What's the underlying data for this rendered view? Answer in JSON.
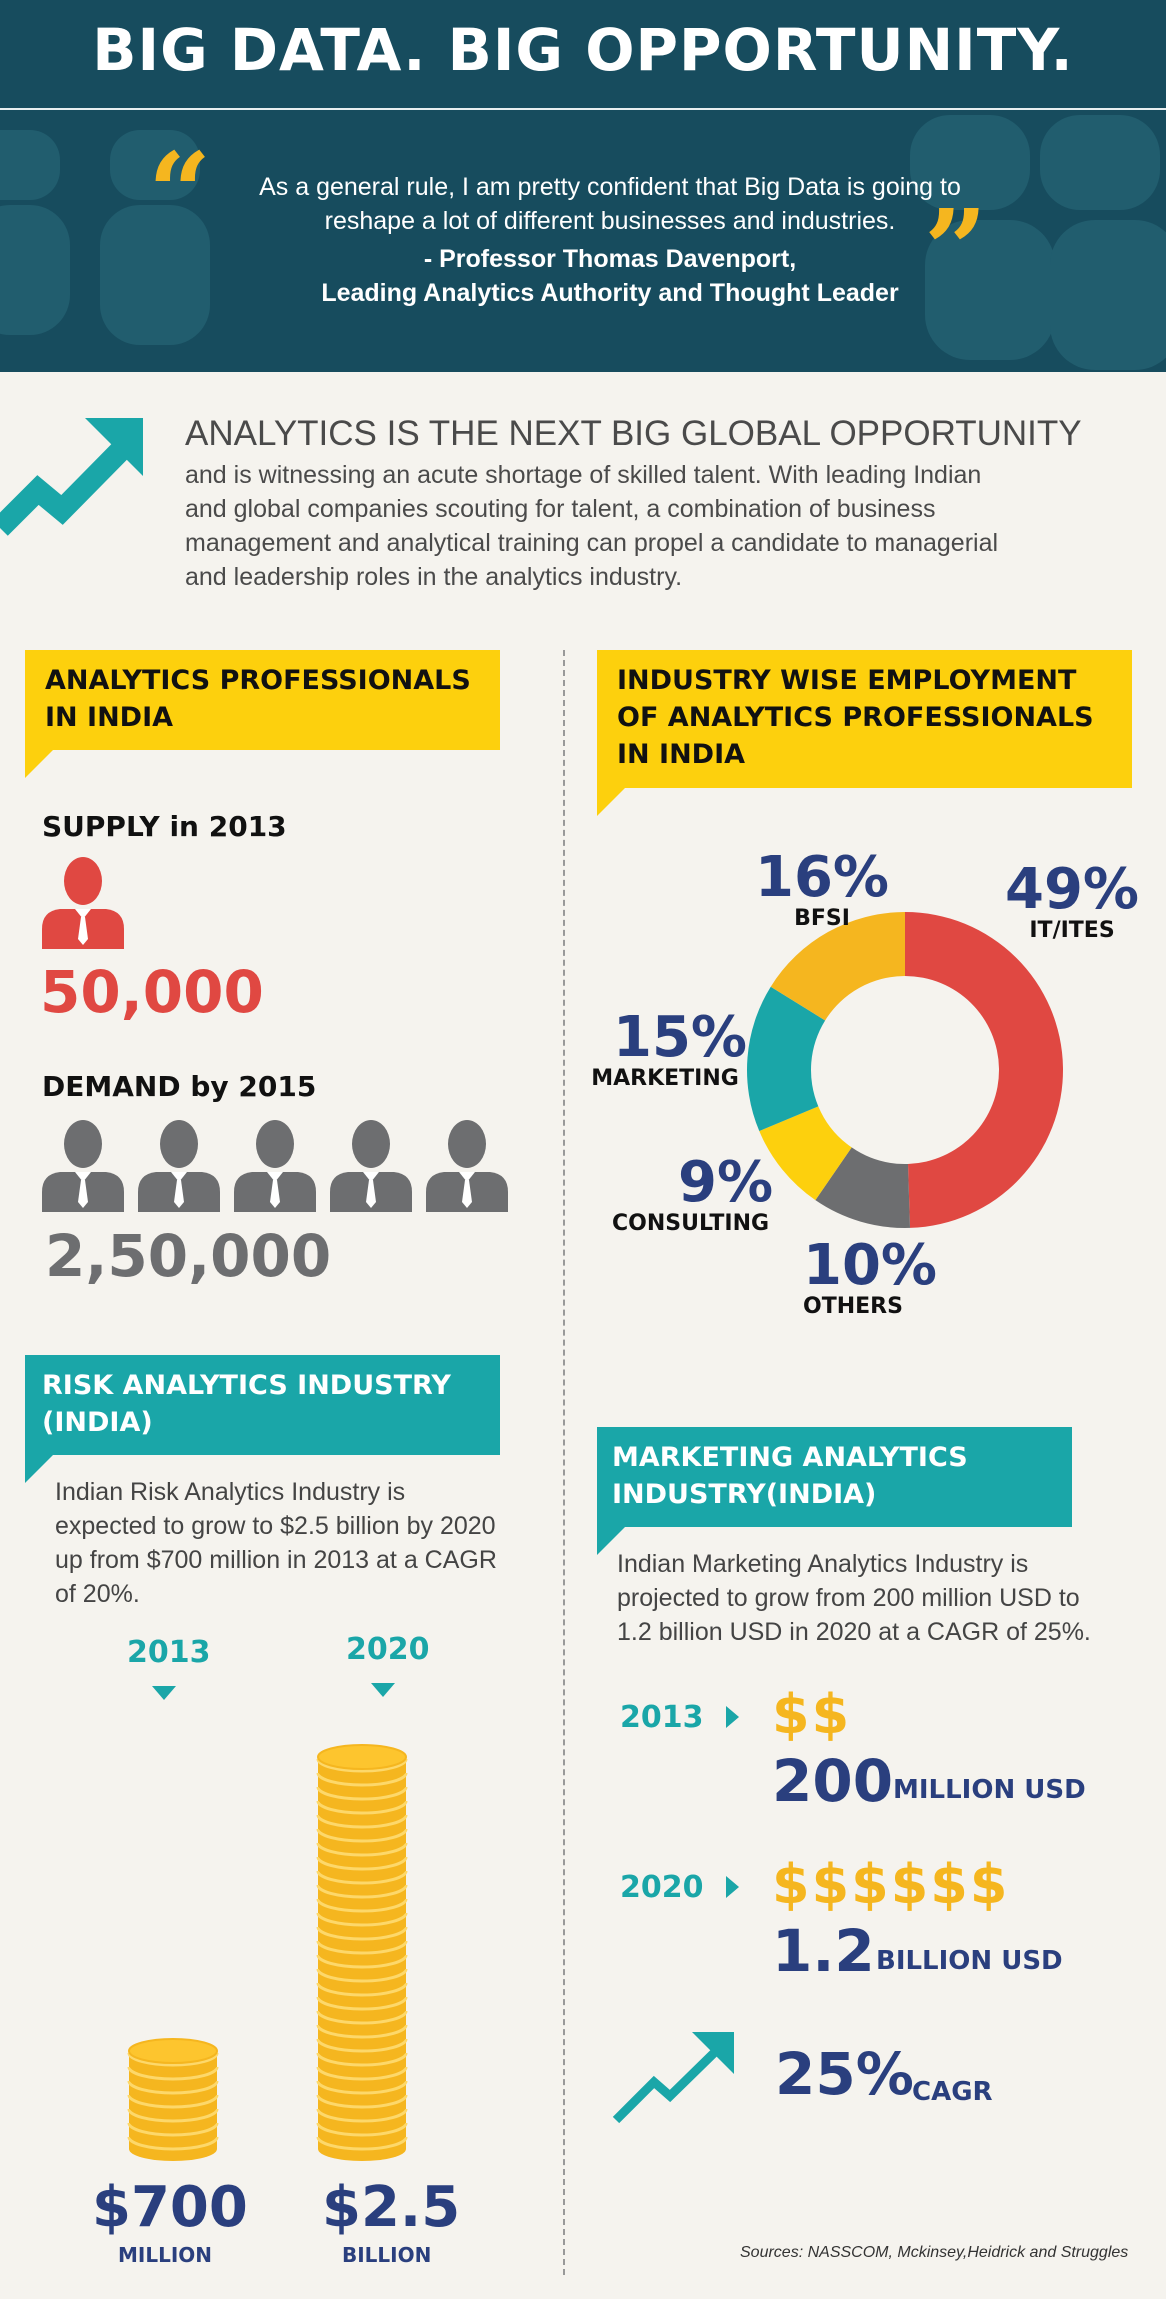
{
  "header": {
    "title": "BIG DATA. BIG OPPORTUNITY."
  },
  "quote": {
    "open_mark": "“",
    "close_mark": "”",
    "text_line1": "As a general rule, I am pretty confident that Big Data is going to",
    "text_line2": "reshape a lot of different businesses and industries.",
    "author_line1": "- Professor Thomas Davenport,",
    "author_line2": "Leading Analytics Authority and Thought Leader"
  },
  "intro": {
    "title": "ANALYTICS IS THE NEXT BIG GLOBAL OPPORTUNITY",
    "body_line1": "and is witnessing an acute shortage of skilled talent. With leading Indian",
    "body_line2": "and global companies scouting for talent, a combination of business",
    "body_line3": "management and analytical training can propel a candidate to managerial",
    "body_line4": "and leadership roles in the analytics industry."
  },
  "professionals": {
    "banner_line1": "ANALYTICS PROFESSIONALS",
    "banner_line2": "IN INDIA",
    "supply_label_bold": "SUPPLY",
    "supply_label_rest": " in 2013",
    "supply_value": "50,000",
    "demand_label_bold": "DEMAND",
    "demand_label_rest": " by 2015",
    "demand_value": "2,50,000"
  },
  "industry": {
    "banner_line1": "INDUSTRY WISE EMPLOYMENT",
    "banner_line2": "OF ANALYTICS PROFESSIONALS",
    "banner_line3": "IN INDIA"
  },
  "chart_data": {
    "type": "pie",
    "title": "INDUSTRY WISE EMPLOYMENT OF ANALYTICS PROFESSIONALS IN INDIA",
    "categories": [
      "IT/ITES",
      "OTHERS",
      "CONSULTING",
      "MARKETING",
      "BFSI"
    ],
    "values": [
      49,
      10,
      9,
      15,
      16
    ],
    "labels": [
      "49%",
      "10%",
      "9%",
      "15%",
      "16%"
    ],
    "colors": [
      "#e04842",
      "#6d6e70",
      "#fdd00d",
      "#1aa6a8",
      "#f5b61f"
    ],
    "donut": true
  },
  "risk": {
    "banner_line1": "RISK ANALYTICS INDUSTRY",
    "banner_line2": "(INDIA)",
    "body_line1": "Indian Risk Analytics Industry is",
    "body_line2": "expected to grow to $2.5 billion by 2020",
    "body_line3": "up from $700 million in 2013 at a CAGR",
    "body_line4": "of 20%.",
    "year1": "2013",
    "year2": "2020",
    "value1": "$700",
    "unit1": "MILLION",
    "value2": "$2.5",
    "unit2": "BILLION",
    "coins1": 7,
    "coins2": 28
  },
  "marketing": {
    "banner_line1": "MARKETING ANALYTICS",
    "banner_line2": "INDUSTRY(INDIA)",
    "body_line1": "Indian Marketing Analytics Industry is",
    "body_line2": "projected to grow from 200 million USD to",
    "body_line3": "1.2 billion USD in 2020 at a CAGR of 25%.",
    "year1": "2013",
    "dollars1": "$$",
    "value1": "200",
    "unit1": "MILLION USD",
    "year2": "2020",
    "dollars2": "$$$$$$",
    "value2": "1.2",
    "unit2": "BILLION USD",
    "cagr_value": "25%",
    "cagr_unit": "CAGR"
  },
  "sources": "Sources: NASSCOM, Mckinsey,Heidrick and Struggles",
  "colors": {
    "navy": "#2a3f7e",
    "teal": "#1aa6a8",
    "yellow": "#fdd00d",
    "red": "#e04842",
    "gray": "#6d6e70",
    "gold": "#f5b61f",
    "header": "#174c5e"
  }
}
